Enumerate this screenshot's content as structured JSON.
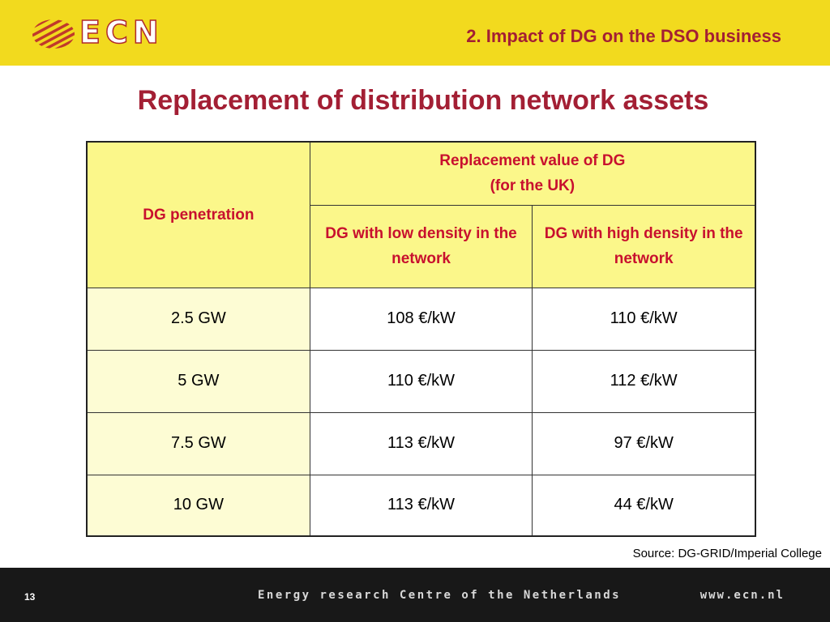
{
  "header": {
    "logo_text": "ECN",
    "section_title": "2. Impact of DG on the DSO business"
  },
  "slide_title": "Replacement of distribution network assets",
  "table": {
    "corner_header": "DG penetration",
    "group_header_line1": "Replacement value of DG",
    "group_header_line2": "(for the UK)",
    "col_low": "DG with low density in the network",
    "col_high": "DG with high density in the network",
    "rows": [
      {
        "penetration": "2.5 GW",
        "low": "108 €/kW",
        "high": "110 €/kW"
      },
      {
        "penetration": "5 GW",
        "low": "110 €/kW",
        "high": "112 €/kW"
      },
      {
        "penetration": "7.5 GW",
        "low": "113 €/kW",
        "high": "97 €/kW"
      },
      {
        "penetration": "10 GW",
        "low": "113 €/kW",
        "high": "44 €/kW"
      }
    ]
  },
  "source": "Source: DG-GRID/Imperial College",
  "footer": {
    "page_number": "13",
    "organization": "Energy research Centre of the Netherlands",
    "url": "www.ecn.nl"
  },
  "colors": {
    "header_bg": "#f2da1e",
    "title_red": "#a31f34",
    "table_header_bg": "#fbf78a",
    "row_label_bg": "#fdfcd4",
    "footer_bg": "#181818"
  },
  "icons": {
    "logo": "ecn-stripes-logo-icon"
  }
}
